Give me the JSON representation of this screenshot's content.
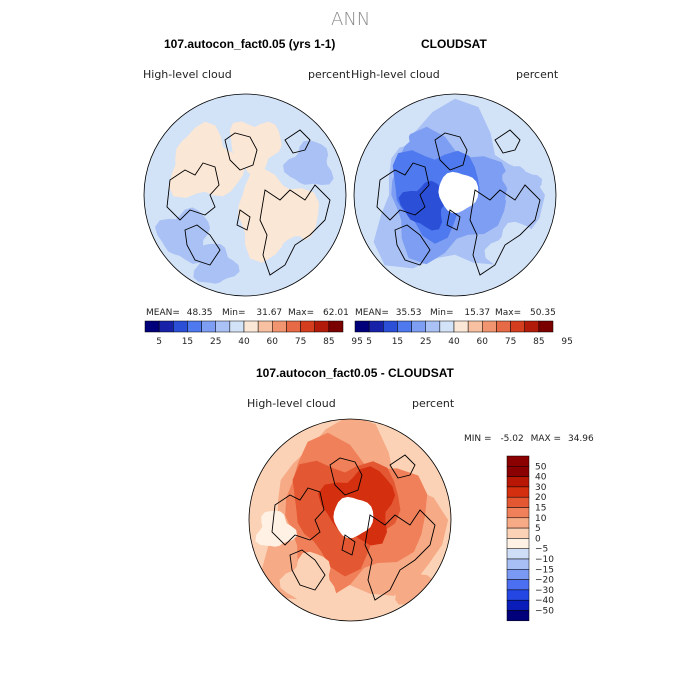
{
  "chart_data": {
    "type": "heatmap",
    "projection": "north polar stereographic",
    "title": "ANN",
    "colors": {
      "abs_scale": [
        "#00007a",
        "#1722a8",
        "#2c4fd8",
        "#4f79ee",
        "#7d9ef2",
        "#a9c1f4",
        "#d2e2f7",
        "#fbe7d5",
        "#f6c0a1",
        "#f19570",
        "#e56a45",
        "#d43d1e",
        "#b21a0a",
        "#7a0000"
      ],
      "diff_scale": [
        "#00007a",
        "#0a1db8",
        "#2447e3",
        "#4b6ff0",
        "#7a99f2",
        "#a7bff4",
        "#cfdef7",
        "#fff1e4",
        "#fbd2b6",
        "#f6aa86",
        "#f08059",
        "#e35832",
        "#d43010",
        "#b81705",
        "#8b0000"
      ]
    },
    "panels": [
      {
        "name": "model",
        "title": "107.autocon_fact0.05 (yrs 1-1)",
        "left_label": "High-level cloud",
        "right_label": "percent",
        "stats": {
          "mean_label": "MEAN=",
          "mean": "48.35",
          "min_label": "Min=",
          "min": "31.67",
          "max_label": "Max=",
          "max": "62.01"
        },
        "colorbar_ticks": [
          "5",
          "15",
          "25",
          "40",
          "60",
          "75",
          "85",
          "95"
        ],
        "dominant_levels": [
          "40-50",
          "50-60"
        ],
        "has_missing_pole": false
      },
      {
        "name": "observation",
        "title": "CLOUDSAT",
        "left_label": "High-level cloud",
        "right_label": "percent",
        "stats": {
          "mean_label": "MEAN=",
          "mean": "35.53",
          "min_label": "Min=",
          "min": "15.37",
          "max_label": "Max=",
          "max": "50.35"
        },
        "colorbar_ticks": [
          "5",
          "15",
          "25",
          "40",
          "60",
          "75",
          "85",
          "95"
        ],
        "dominant_levels": [
          "15-25",
          "25-40",
          "40-50"
        ],
        "has_missing_pole": true
      },
      {
        "name": "difference",
        "title": "107.autocon_fact0.05 - CLOUDSAT",
        "left_label": "High-level cloud",
        "right_label": "percent",
        "stats": {
          "min_label": "MIN =",
          "min": "-5.02",
          "max_label": "MAX =",
          "max": "34.96"
        },
        "colorbar_ticks": [
          "50",
          "40",
          "30",
          "20",
          "15",
          "10",
          "5",
          "0",
          "−5",
          "−10",
          "−15",
          "−20",
          "−30",
          "−40",
          "−50"
        ],
        "dominant_levels": [
          "10-15",
          "15-20",
          "20-30"
        ],
        "has_missing_pole": true
      }
    ]
  }
}
